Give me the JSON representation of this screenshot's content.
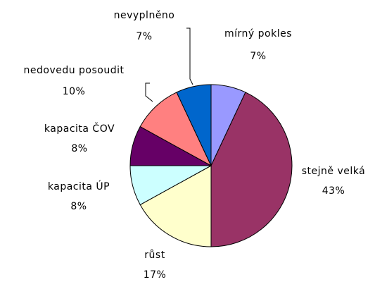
{
  "chart_data": {
    "type": "pie",
    "categories": [
      "mírný pokles",
      "stejně velká",
      "růst",
      "kapacita ÚP",
      "kapacita ČOV",
      "nedovedu posoudit",
      "nevyplněno"
    ],
    "values": [
      7,
      43,
      17,
      8,
      8,
      10,
      7
    ],
    "value_labels": [
      "7%",
      "43%",
      "17%",
      "8%",
      "8%",
      "10%",
      "7%"
    ],
    "colors": [
      "#9999ff",
      "#993366",
      "#ffffcc",
      "#ccffff",
      "#660066",
      "#ff8080",
      "#0066cc"
    ]
  }
}
